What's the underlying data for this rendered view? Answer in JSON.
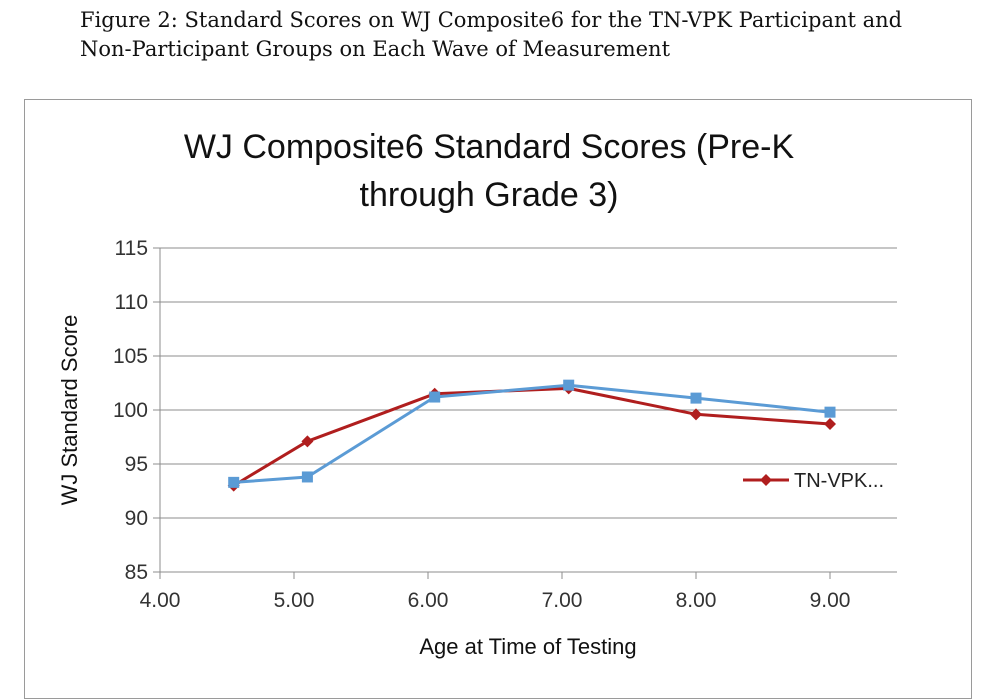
{
  "caption": {
    "line1": "Figure 2: Standard Scores on WJ Composite6 for the TN-VPK Participant and",
    "line2": "Non-Participant Groups on Each Wave of Measurement"
  },
  "chart_data": {
    "type": "line",
    "title_line1": "WJ Composite6  Standard Scores (Pre-K",
    "title_line2": "through Grade 3)",
    "xlabel": "Age at Time of Testing",
    "ylabel": "WJ Standard  Score",
    "xlim": [
      4.0,
      9.5
    ],
    "ylim": [
      85,
      115
    ],
    "xticks": [
      "4.00",
      "5.00",
      "6.00",
      "7.00",
      "8.00",
      "9.00"
    ],
    "yticks": [
      "115",
      "110",
      "105",
      "100",
      "95",
      "90",
      "85"
    ],
    "grid": true,
    "legend_position": "right",
    "series": [
      {
        "name": "TN-VPK...",
        "color": "#b01e1e",
        "marker": "diamond",
        "x": [
          4.55,
          5.1,
          6.05,
          7.05,
          8.0,
          9.0
        ],
        "y": [
          93.0,
          97.1,
          101.5,
          102.0,
          99.6,
          98.7
        ]
      },
      {
        "color": "#5b9bd5",
        "marker": "square",
        "x": [
          4.55,
          5.1,
          6.05,
          7.05,
          8.0,
          9.0
        ],
        "y": [
          93.3,
          93.8,
          101.2,
          102.3,
          101.1,
          99.8
        ]
      }
    ]
  }
}
